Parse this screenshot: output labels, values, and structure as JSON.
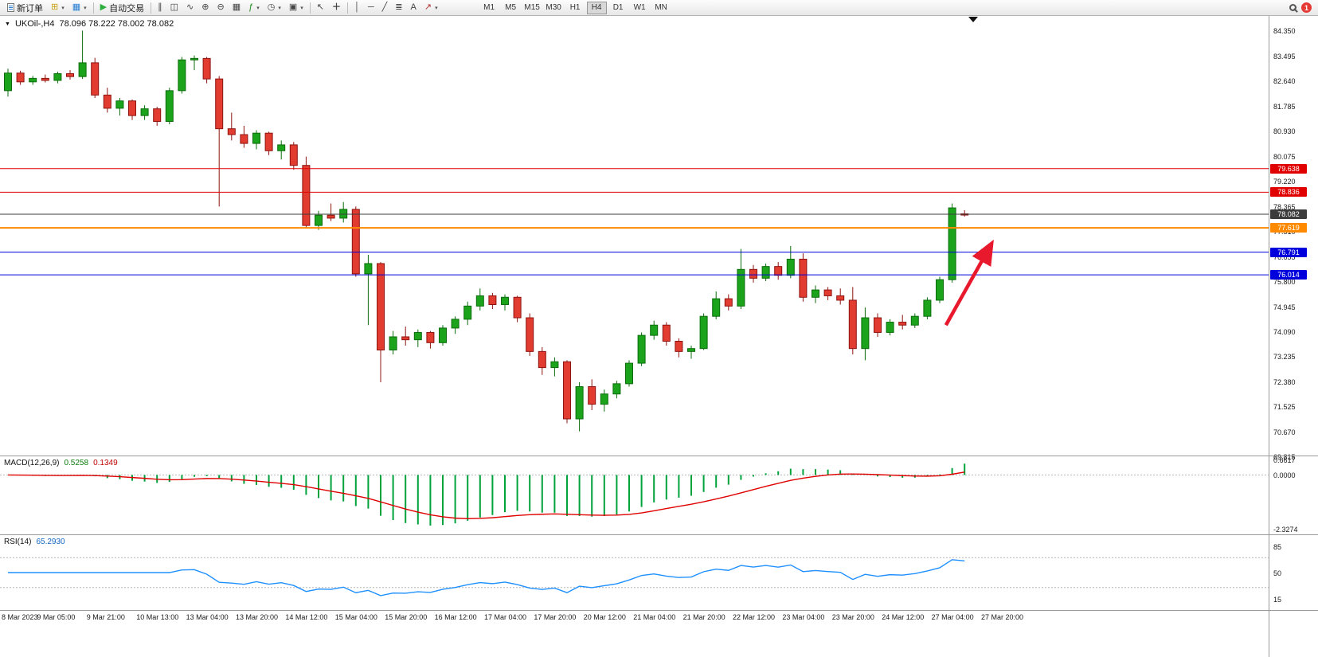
{
  "toolbar": {
    "new_order_label": "新订单",
    "auto_trading_label": "自动交易",
    "timeframes": [
      "M1",
      "M5",
      "M15",
      "M30",
      "H1",
      "H4",
      "D1",
      "W1",
      "MN"
    ],
    "active_timeframe": "H4",
    "notification_count": "1"
  },
  "chart": {
    "symbol_period": "UKOil-,H4",
    "ohlc_text": "78.096 78.222 78.002 78.082",
    "price_axis_labels": [
      "84.350",
      "83.495",
      "82.640",
      "81.785",
      "80.930",
      "80.075",
      "79.220",
      "78.365",
      "77.510",
      "76.655",
      "75.800",
      "74.945",
      "74.090",
      "73.235",
      "72.380",
      "71.525",
      "70.670",
      "69.815"
    ],
    "time_axis_labels": [
      "8 Mar 2023",
      "9 Mar 05:00",
      "9 Mar 21:00",
      "10 Mar 13:00",
      "13 Mar 04:00",
      "13 Mar 20:00",
      "14 Mar 12:00",
      "15 Mar 04:00",
      "15 Mar 20:00",
      "16 Mar 12:00",
      "17 Mar 04:00",
      "17 Mar 20:00",
      "20 Mar 12:00",
      "21 Mar 04:00",
      "21 Mar 20:00",
      "22 Mar 12:00",
      "23 Mar 04:00",
      "23 Mar 20:00",
      "24 Mar 12:00",
      "27 Mar 04:00",
      "27 Mar 20:00"
    ],
    "hlines": [
      {
        "price": 79.638,
        "label": "79.638",
        "color": "#e00000",
        "width": 1
      },
      {
        "price": 78.836,
        "label": "78.836",
        "color": "#e00000",
        "width": 1
      },
      {
        "price": 78.082,
        "label": "78.082",
        "color": "#3c3c3c",
        "width": 1
      },
      {
        "price": 77.619,
        "label": "77.619",
        "color": "#ff8a00",
        "width": 2
      },
      {
        "price": 76.791,
        "label": "76.791",
        "color": "#0000dd",
        "width": 1
      },
      {
        "price": 76.014,
        "label": "76.014",
        "color": "#0000dd",
        "width": 1
      }
    ],
    "arrow": {
      "from_index": 75.5,
      "from_price": 74.3,
      "to_index": 79.0,
      "to_price": 76.95,
      "color": "#e8192c"
    }
  },
  "chart_data": {
    "type": "candlestick",
    "symbol": "UKOil-",
    "timeframe": "H4",
    "title": "UKOil-,H4 78.096 78.222 78.002 78.082",
    "current_ohlc": {
      "open": 78.096,
      "high": 78.222,
      "low": 78.002,
      "close": 78.082
    },
    "price_range": [
      69.85,
      84.85
    ],
    "colors": {
      "up": "#1ca31c",
      "up_border": "#0b6d0b",
      "down": "#e23b30",
      "down_border": "#8e1410"
    },
    "candles": [
      [
        82.3,
        83.05,
        82.1,
        82.9
      ],
      [
        82.9,
        82.98,
        82.5,
        82.6
      ],
      [
        82.6,
        82.8,
        82.5,
        82.72
      ],
      [
        82.72,
        82.85,
        82.58,
        82.65
      ],
      [
        82.65,
        82.95,
        82.55,
        82.88
      ],
      [
        82.88,
        83.0,
        82.68,
        82.78
      ],
      [
        82.78,
        84.35,
        82.7,
        83.25
      ],
      [
        83.25,
        83.42,
        82.05,
        82.15
      ],
      [
        82.15,
        82.4,
        81.55,
        81.7
      ],
      [
        81.7,
        82.05,
        81.45,
        81.95
      ],
      [
        81.95,
        82.0,
        81.3,
        81.45
      ],
      [
        81.45,
        81.8,
        81.3,
        81.68
      ],
      [
        81.68,
        81.75,
        81.1,
        81.25
      ],
      [
        81.25,
        82.4,
        81.15,
        82.3
      ],
      [
        82.3,
        83.45,
        82.2,
        83.35
      ],
      [
        83.35,
        83.5,
        83.0,
        83.4
      ],
      [
        83.4,
        83.45,
        82.55,
        82.7
      ],
      [
        82.7,
        82.8,
        78.35,
        81.0
      ],
      [
        81.0,
        81.55,
        80.6,
        80.8
      ],
      [
        80.8,
        81.1,
        80.35,
        80.5
      ],
      [
        80.5,
        80.95,
        80.3,
        80.85
      ],
      [
        80.85,
        80.9,
        80.1,
        80.25
      ],
      [
        80.25,
        80.6,
        79.95,
        80.45
      ],
      [
        80.45,
        80.55,
        79.6,
        79.75
      ],
      [
        79.75,
        80.05,
        77.6,
        77.7
      ],
      [
        77.7,
        78.2,
        77.55,
        78.05
      ],
      [
        78.05,
        78.45,
        77.85,
        77.95
      ],
      [
        77.95,
        78.5,
        77.8,
        78.25
      ],
      [
        78.25,
        78.35,
        75.95,
        76.05
      ],
      [
        76.05,
        76.7,
        74.3,
        76.4
      ],
      [
        76.4,
        76.45,
        72.35,
        73.45
      ],
      [
        73.45,
        74.1,
        73.3,
        73.9
      ],
      [
        73.9,
        74.25,
        73.6,
        73.8
      ],
      [
        73.8,
        74.15,
        73.55,
        74.05
      ],
      [
        74.05,
        74.1,
        73.5,
        73.7
      ],
      [
        73.7,
        74.3,
        73.6,
        74.2
      ],
      [
        74.2,
        74.6,
        74.0,
        74.5
      ],
      [
        74.5,
        75.1,
        74.3,
        74.95
      ],
      [
        74.95,
        75.55,
        74.8,
        75.3
      ],
      [
        75.3,
        75.4,
        74.85,
        75.0
      ],
      [
        75.0,
        75.35,
        74.8,
        75.25
      ],
      [
        75.25,
        75.3,
        74.4,
        74.55
      ],
      [
        74.55,
        74.7,
        73.25,
        73.4
      ],
      [
        73.4,
        73.55,
        72.6,
        72.85
      ],
      [
        72.85,
        73.2,
        72.55,
        73.05
      ],
      [
        73.05,
        73.1,
        70.95,
        71.1
      ],
      [
        71.1,
        72.35,
        70.675,
        72.2
      ],
      [
        72.2,
        72.45,
        71.4,
        71.6
      ],
      [
        71.6,
        72.1,
        71.35,
        71.95
      ],
      [
        71.95,
        72.4,
        71.8,
        72.3
      ],
      [
        72.3,
        73.1,
        72.2,
        73.0
      ],
      [
        73.0,
        74.05,
        72.9,
        73.95
      ],
      [
        73.95,
        74.45,
        73.8,
        74.3
      ],
      [
        74.3,
        74.4,
        73.6,
        73.75
      ],
      [
        73.75,
        73.85,
        73.2,
        73.4
      ],
      [
        73.4,
        73.6,
        73.15,
        73.5
      ],
      [
        73.5,
        74.7,
        73.45,
        74.6
      ],
      [
        74.6,
        75.45,
        74.5,
        75.2
      ],
      [
        75.2,
        75.35,
        74.8,
        74.95
      ],
      [
        74.95,
        76.9,
        74.85,
        76.2
      ],
      [
        76.2,
        76.35,
        75.75,
        75.9
      ],
      [
        75.9,
        76.4,
        75.8,
        76.3
      ],
      [
        76.3,
        76.45,
        75.85,
        76.0
      ],
      [
        76.0,
        77.0,
        75.9,
        76.55
      ],
      [
        76.55,
        76.75,
        75.1,
        75.25
      ],
      [
        75.25,
        75.65,
        75.05,
        75.5
      ],
      [
        75.5,
        75.6,
        75.15,
        75.3
      ],
      [
        75.3,
        75.55,
        75.0,
        75.15
      ],
      [
        75.15,
        75.6,
        73.3,
        73.5
      ],
      [
        73.5,
        74.9,
        73.1,
        74.55
      ],
      [
        74.55,
        74.7,
        73.9,
        74.05
      ],
      [
        74.05,
        74.5,
        73.95,
        74.4
      ],
      [
        74.4,
        74.65,
        74.15,
        74.3
      ],
      [
        74.3,
        74.7,
        74.2,
        74.6
      ],
      [
        74.6,
        75.25,
        74.5,
        75.15
      ],
      [
        75.15,
        75.95,
        75.05,
        75.85
      ],
      [
        75.85,
        78.45,
        75.75,
        78.3
      ],
      [
        78.096,
        78.222,
        78.002,
        78.082
      ]
    ],
    "indicators": [
      {
        "type": "MACD",
        "params": [
          12,
          26,
          9
        ],
        "label": "MACD(12,26,9)",
        "values": [
          "0.5258",
          "0.1349"
        ],
        "scale_labels": [
          "0.6617",
          "0.0000",
          "-2.3274"
        ],
        "range": [
          -2.55,
          0.8
        ],
        "histogram_color": "#00a23c",
        "signal_color": "#e00000"
      },
      {
        "type": "RSI",
        "params": [
          14
        ],
        "label": "RSI(14)",
        "values": [
          "65.2930"
        ],
        "scale_labels": [
          "85",
          "50",
          "15"
        ],
        "levels": [
          70,
          30
        ],
        "range": [
          0,
          100
        ],
        "line_color": "#1e90ff"
      }
    ]
  }
}
